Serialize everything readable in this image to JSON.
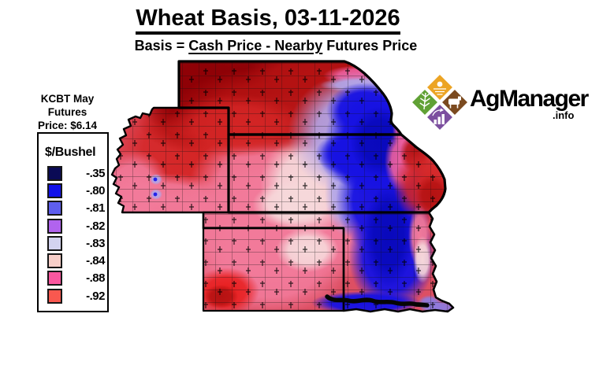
{
  "title": "Wheat Basis, 03-11-2026",
  "subtitle": {
    "prefix": "Basis = ",
    "underlined": "Cash Price - Nearby",
    "suffix": " Futures Price"
  },
  "futures_note": {
    "lines": [
      "KCBT May",
      "Futures",
      "Price: $6.14"
    ]
  },
  "legend": {
    "header": "$/Bushel",
    "entries": [
      {
        "label": "-.35",
        "color": "#0a0a55"
      },
      {
        "label": "-.80",
        "color": "#1111ea"
      },
      {
        "label": "-.81",
        "color": "#5e5eee"
      },
      {
        "label": "-.82",
        "color": "#b163ee"
      },
      {
        "label": "-.83",
        "color": "#d3d3f0"
      },
      {
        "label": "-.84",
        "color": "#f7cfc9"
      },
      {
        "label": "-.88",
        "color": "#fa57a0"
      },
      {
        "label": "-.92",
        "color": "#f9584f"
      }
    ]
  },
  "logo": {
    "brand": "AgManager",
    "suffix": ".info",
    "quadrants": [
      {
        "icon": "sunrise-field-icon",
        "color": "#eca424"
      },
      {
        "icon": "wheat-icon",
        "color": "#60a135"
      },
      {
        "icon": "cattle-icon",
        "color": "#7b4a1f"
      },
      {
        "icon": "chart-growth-icon",
        "color": "#7c4f9f"
      }
    ]
  },
  "map": {
    "marker_color": "#2323ea",
    "palette": {
      "darkest_red": "#8e0005",
      "red": "#d42525",
      "deep_red": "#b51212",
      "bright_red": "#e81d1d",
      "pink": "#f27a9a",
      "pale_pink": "#f6d8da",
      "magenta": "#ec5f9e",
      "lavender": "#b2a6e8",
      "blue": "#1712e2",
      "navy": "#0909bc",
      "purple": "#8f7ade"
    }
  }
}
